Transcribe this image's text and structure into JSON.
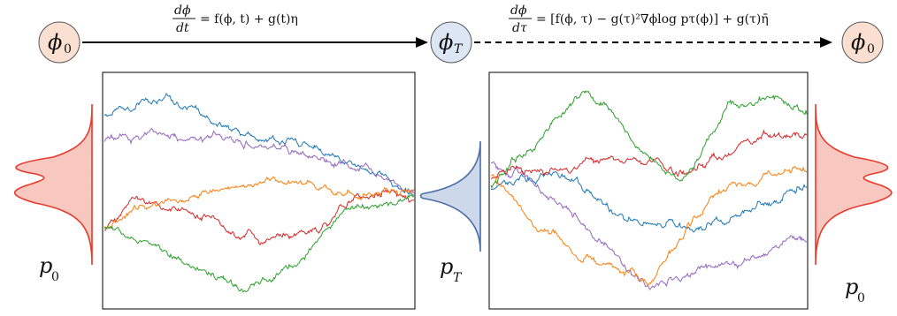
{
  "nodes": {
    "start": {
      "sym": "ϕ",
      "sub": "0"
    },
    "middle": {
      "sym": "ϕ",
      "sub": "T"
    },
    "end": {
      "sym": "ϕ",
      "sub": "0"
    }
  },
  "equations": {
    "forward": {
      "frac_num": "dϕ",
      "frac_den": "dt",
      "rhs": "= f(ϕ, t) + g(t)η"
    },
    "reverse": {
      "frac_num": "dϕ",
      "frac_den": "dτ",
      "rhs": "= [f(ϕ, τ)  − g(τ)²∇ϕlog pτ(ϕ)] + g(τ)η̄"
    }
  },
  "distribution_labels": {
    "left": {
      "sym": "p",
      "sub": "0"
    },
    "center": {
      "sym": "p",
      "sub": "T"
    },
    "right": {
      "sym": "p",
      "sub": "0"
    }
  },
  "colors": {
    "node_orange_fill": "#fbe0d2",
    "node_blue_fill": "#dce6f5",
    "dist_red": "#e8392b",
    "dist_red_fill": "#f8c7bf",
    "dist_blue": "#4a6fa5",
    "dist_blue_fill": "#cdd8ea",
    "series": [
      "#1f77b4",
      "#9467bd",
      "#d62728",
      "#ff7f0e",
      "#2ca02c"
    ]
  },
  "series_names": [
    "blue",
    "purple",
    "red",
    "orange",
    "green"
  ]
}
